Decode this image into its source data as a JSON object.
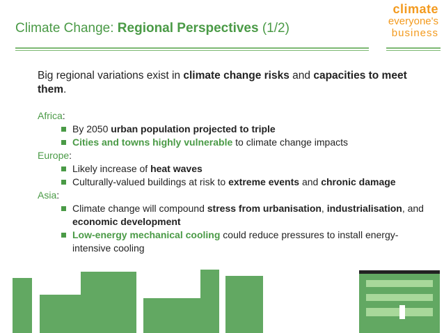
{
  "title": {
    "prefix": "Climate Change: ",
    "bold": "Regional Perspectives",
    "suffix": " (1/2)"
  },
  "logo": {
    "line1": "climate",
    "line2": "everyone's",
    "line3": "business"
  },
  "intro": {
    "t1": "Big regional variations exist in ",
    "b1": "climate change risks",
    "t2": " and ",
    "b2": "capacities to meet them",
    "t3": "."
  },
  "regions": {
    "africa": {
      "name": "Africa",
      "items": [
        {
          "t1": "By 2050 ",
          "b1": "urban population projected to triple"
        },
        {
          "b1": "Cities and towns highly vulnerable",
          "t2": " to climate change impacts"
        }
      ]
    },
    "europe": {
      "name": "Europe",
      "items": [
        {
          "t1": "Likely increase of ",
          "b1": "heat waves"
        },
        {
          "t1": "Culturally-valued buildings at risk to ",
          "b1": "extreme events",
          "t2": " and ",
          "b2": "chronic damage"
        }
      ]
    },
    "asia": {
      "name": "Asia",
      "items": [
        {
          "t1": "Climate change will compound ",
          "b1": "stress from urbanisation",
          "t2": ", ",
          "b2": "industrialisation",
          "t3": ", and ",
          "b3": "economic development"
        },
        {
          "b1": "Low-energy mechanical cooling",
          "t2": " could reduce pressures to install energy-intensive cooling"
        }
      ]
    }
  },
  "punct": {
    "colon": ":"
  },
  "colors": {
    "accent_green": "#4a9a46",
    "bar_green": "#62a862",
    "logo_orange": "#f39a1e"
  }
}
